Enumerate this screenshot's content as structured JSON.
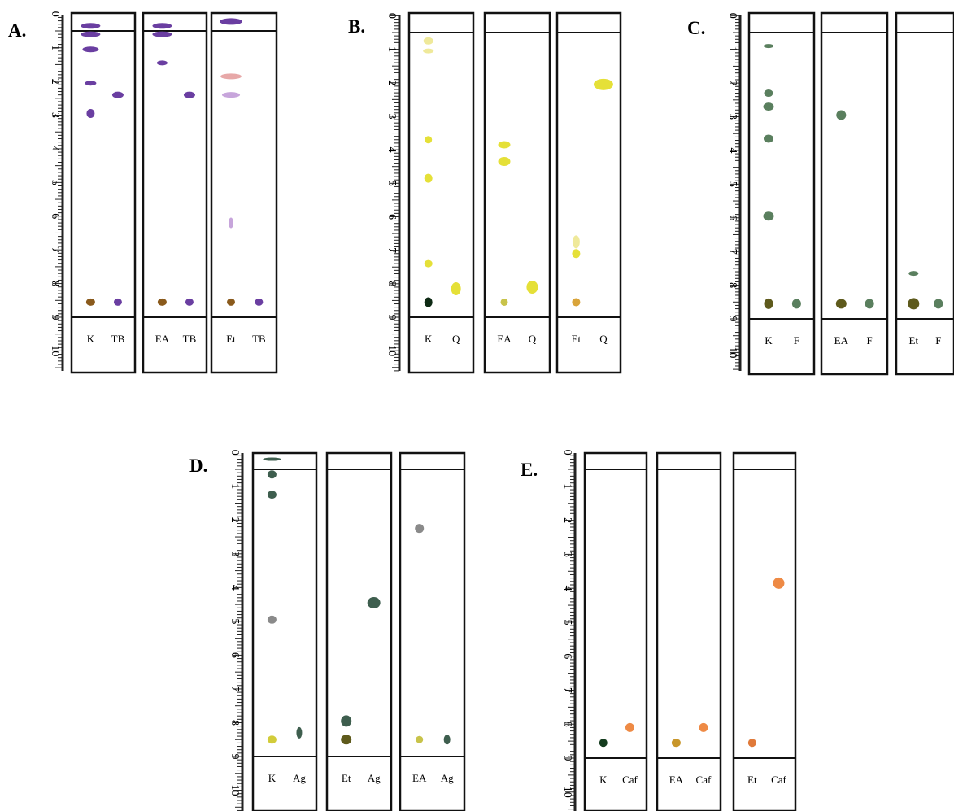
{
  "panels": [
    {
      "label": "A.",
      "strips": [
        {
          "lanes": [
            {
              "name": "K",
              "spots": [
                {
                  "rf": 0.35,
                  "w": 24,
                  "h": 7,
                  "color": "#6a3ea1"
                },
                {
                  "rf": 0.6,
                  "w": 24,
                  "h": 7,
                  "color": "#6a3ea1"
                },
                {
                  "rf": 1.05,
                  "w": 20,
                  "h": 7,
                  "color": "#6a3ea1"
                },
                {
                  "rf": 2.05,
                  "w": 14,
                  "h": 6,
                  "color": "#6a3ea1"
                },
                {
                  "rf": 2.95,
                  "w": 10,
                  "h": 11,
                  "color": "#6a3ea1"
                },
                {
                  "rf": 8.55,
                  "w": 11,
                  "h": 9,
                  "color": "#8a5a1c"
                }
              ]
            },
            {
              "name": "TB",
              "spots": [
                {
                  "rf": 2.4,
                  "w": 14,
                  "h": 8,
                  "color": "#6a3ea1"
                },
                {
                  "rf": 8.55,
                  "w": 10,
                  "h": 9,
                  "color": "#6a3ea1"
                }
              ]
            }
          ]
        },
        {
          "lanes": [
            {
              "name": "EA",
              "spots": [
                {
                  "rf": 0.35,
                  "w": 24,
                  "h": 7,
                  "color": "#6a3ea1"
                },
                {
                  "rf": 0.6,
                  "w": 24,
                  "h": 7,
                  "color": "#6a3ea1"
                },
                {
                  "rf": 1.45,
                  "w": 13,
                  "h": 6,
                  "color": "#6a3ea1"
                },
                {
                  "rf": 8.55,
                  "w": 11,
                  "h": 9,
                  "color": "#8a5a1c"
                }
              ]
            },
            {
              "name": "TB",
              "spots": [
                {
                  "rf": 2.4,
                  "w": 14,
                  "h": 8,
                  "color": "#6a3ea1"
                },
                {
                  "rf": 8.55,
                  "w": 10,
                  "h": 9,
                  "color": "#6a3ea1"
                }
              ]
            }
          ]
        },
        {
          "lanes": [
            {
              "name": "Et",
              "spots": [
                {
                  "rf": 0.22,
                  "w": 28,
                  "h": 8,
                  "color": "#6a3ea1"
                },
                {
                  "rf": 1.85,
                  "w": 26,
                  "h": 7,
                  "color": "#e7a8a8"
                },
                {
                  "rf": 2.4,
                  "w": 22,
                  "h": 7,
                  "color": "#c7a5db"
                },
                {
                  "rf": 6.2,
                  "w": 6,
                  "h": 13,
                  "color": "#c7a5db"
                },
                {
                  "rf": 8.55,
                  "w": 10,
                  "h": 9,
                  "color": "#8a5a1c"
                }
              ]
            },
            {
              "name": "TB",
              "spots": [
                {
                  "rf": 8.55,
                  "w": 10,
                  "h": 9,
                  "color": "#6a3ea1"
                }
              ]
            }
          ]
        }
      ]
    },
    {
      "label": "B.",
      "strips": [
        {
          "lanes": [
            {
              "name": "K",
              "spots": [
                {
                  "rf": 0.75,
                  "w": 12,
                  "h": 9,
                  "color": "#efe99a"
                },
                {
                  "rf": 1.05,
                  "w": 13,
                  "h": 6,
                  "color": "#efe99a"
                },
                {
                  "rf": 3.7,
                  "w": 9,
                  "h": 9,
                  "color": "#e5e038"
                },
                {
                  "rf": 4.85,
                  "w": 10,
                  "h": 11,
                  "color": "#e5e038"
                },
                {
                  "rf": 7.4,
                  "w": 10,
                  "h": 9,
                  "color": "#e5e038"
                },
                {
                  "rf": 8.55,
                  "w": 10,
                  "h": 12,
                  "color": "#0e2a14"
                }
              ]
            },
            {
              "name": "Q",
              "spots": [
                {
                  "rf": 8.15,
                  "w": 12,
                  "h": 16,
                  "color": "#e5e038"
                }
              ]
            }
          ]
        },
        {
          "lanes": [
            {
              "name": "EA",
              "spots": [
                {
                  "rf": 3.85,
                  "w": 15,
                  "h": 9,
                  "color": "#e5e038"
                },
                {
                  "rf": 4.35,
                  "w": 15,
                  "h": 11,
                  "color": "#e5e038"
                },
                {
                  "rf": 8.55,
                  "w": 9,
                  "h": 9,
                  "color": "#c8c34a"
                }
              ]
            },
            {
              "name": "Q",
              "spots": [
                {
                  "rf": 8.1,
                  "w": 14,
                  "h": 16,
                  "color": "#e5e038"
                }
              ]
            }
          ]
        },
        {
          "lanes": [
            {
              "name": "Et",
              "spots": [
                {
                  "rf": 6.75,
                  "w": 9,
                  "h": 16,
                  "color": "#efe99a"
                },
                {
                  "rf": 7.1,
                  "w": 10,
                  "h": 11,
                  "color": "#e5e038"
                },
                {
                  "rf": 8.55,
                  "w": 10,
                  "h": 10,
                  "color": "#d9a43a"
                }
              ]
            },
            {
              "name": "Q",
              "spots": [
                {
                  "rf": 2.05,
                  "w": 24,
                  "h": 14,
                  "color": "#e5e038"
                }
              ]
            }
          ]
        }
      ]
    },
    {
      "label": "C.",
      "strips": [
        {
          "lanes": [
            {
              "name": "K",
              "spots": [
                {
                  "rf": 0.9,
                  "w": 12,
                  "h": 5,
                  "color": "#5a7f5e"
                },
                {
                  "rf": 2.3,
                  "w": 11,
                  "h": 9,
                  "color": "#5a7f5e"
                },
                {
                  "rf": 2.7,
                  "w": 13,
                  "h": 10,
                  "color": "#5a7f5e"
                },
                {
                  "rf": 3.65,
                  "w": 12,
                  "h": 10,
                  "color": "#5a7f5e"
                },
                {
                  "rf": 5.95,
                  "w": 13,
                  "h": 11,
                  "color": "#5a7f5e"
                },
                {
                  "rf": 8.55,
                  "w": 11,
                  "h": 13,
                  "color": "#5e5a1c"
                }
              ]
            },
            {
              "name": "F",
              "spots": [
                {
                  "rf": 8.55,
                  "w": 11,
                  "h": 12,
                  "color": "#5a7f5e"
                }
              ]
            }
          ]
        },
        {
          "lanes": [
            {
              "name": "EA",
              "spots": [
                {
                  "rf": 2.95,
                  "w": 12,
                  "h": 12,
                  "color": "#5a7f5e"
                },
                {
                  "rf": 8.55,
                  "w": 13,
                  "h": 12,
                  "color": "#5e5a1c"
                }
              ]
            },
            {
              "name": "F",
              "spots": [
                {
                  "rf": 8.55,
                  "w": 11,
                  "h": 12,
                  "color": "#5a7f5e"
                }
              ]
            }
          ]
        },
        {
          "lanes": [
            {
              "name": "Et",
              "spots": [
                {
                  "rf": 7.65,
                  "w": 12,
                  "h": 6,
                  "color": "#5a7f5e"
                },
                {
                  "rf": 8.55,
                  "w": 14,
                  "h": 14,
                  "color": "#5e5a1c"
                }
              ]
            },
            {
              "name": "F",
              "spots": [
                {
                  "rf": 8.55,
                  "w": 11,
                  "h": 12,
                  "color": "#5a7f5e"
                }
              ]
            }
          ]
        }
      ]
    },
    {
      "label": "D.",
      "strips": [
        {
          "lanes": [
            {
              "name": "K",
              "spots": [
                {
                  "rf": 0.2,
                  "w": 22,
                  "h": 4,
                  "color": "#3e5e4e"
                },
                {
                  "rf": 0.65,
                  "w": 11,
                  "h": 10,
                  "color": "#3e5e4e"
                },
                {
                  "rf": 1.25,
                  "w": 11,
                  "h": 10,
                  "color": "#3e5e4e"
                },
                {
                  "rf": 4.95,
                  "w": 11,
                  "h": 10,
                  "color": "#8a8a8a"
                },
                {
                  "rf": 8.5,
                  "w": 11,
                  "h": 10,
                  "color": "#d2cc3a"
                }
              ]
            },
            {
              "name": "Ag",
              "spots": [
                {
                  "rf": 8.3,
                  "w": 7,
                  "h": 14,
                  "color": "#3e5e4e"
                }
              ]
            }
          ]
        },
        {
          "lanes": [
            {
              "name": "Et",
              "spots": [
                {
                  "rf": 7.95,
                  "w": 13,
                  "h": 14,
                  "color": "#3e5e4e"
                },
                {
                  "rf": 8.5,
                  "w": 13,
                  "h": 12,
                  "color": "#5e5a1c"
                }
              ]
            },
            {
              "name": "Ag",
              "spots": [
                {
                  "rf": 4.45,
                  "w": 16,
                  "h": 14,
                  "color": "#3e5e4e"
                }
              ]
            }
          ]
        },
        {
          "lanes": [
            {
              "name": "EA",
              "spots": [
                {
                  "rf": 2.25,
                  "w": 11,
                  "h": 11,
                  "color": "#8a8a8a"
                },
                {
                  "rf": 8.5,
                  "w": 9,
                  "h": 9,
                  "color": "#c8c34a"
                }
              ]
            },
            {
              "name": "Ag",
              "spots": [
                {
                  "rf": 8.5,
                  "w": 8,
                  "h": 12,
                  "color": "#3e5e4e"
                }
              ]
            }
          ]
        }
      ]
    },
    {
      "label": "E.",
      "strips": [
        {
          "lanes": [
            {
              "name": "K",
              "spots": [
                {
                  "rf": 8.55,
                  "w": 10,
                  "h": 10,
                  "color": "#143c1e"
                }
              ]
            },
            {
              "name": "Caf",
              "spots": [
                {
                  "rf": 8.1,
                  "w": 11,
                  "h": 11,
                  "color": "#ee8a45"
                }
              ]
            }
          ]
        },
        {
          "lanes": [
            {
              "name": "EA",
              "spots": [
                {
                  "rf": 8.55,
                  "w": 11,
                  "h": 10,
                  "color": "#c8962a"
                }
              ]
            },
            {
              "name": "Caf",
              "spots": [
                {
                  "rf": 8.1,
                  "w": 11,
                  "h": 11,
                  "color": "#ee8a45"
                }
              ]
            }
          ]
        },
        {
          "lanes": [
            {
              "name": "Et",
              "spots": [
                {
                  "rf": 8.55,
                  "w": 10,
                  "h": 10,
                  "color": "#e07a3a"
                }
              ]
            },
            {
              "name": "Caf",
              "spots": [
                {
                  "rf": 3.85,
                  "w": 14,
                  "h": 14,
                  "color": "#ee8a45"
                }
              ]
            }
          ]
        }
      ]
    }
  ],
  "ruler": {
    "labels": [
      "0",
      "1",
      "2",
      "3",
      "4",
      "5",
      "6",
      "7",
      "8",
      "9",
      "10"
    ]
  }
}
